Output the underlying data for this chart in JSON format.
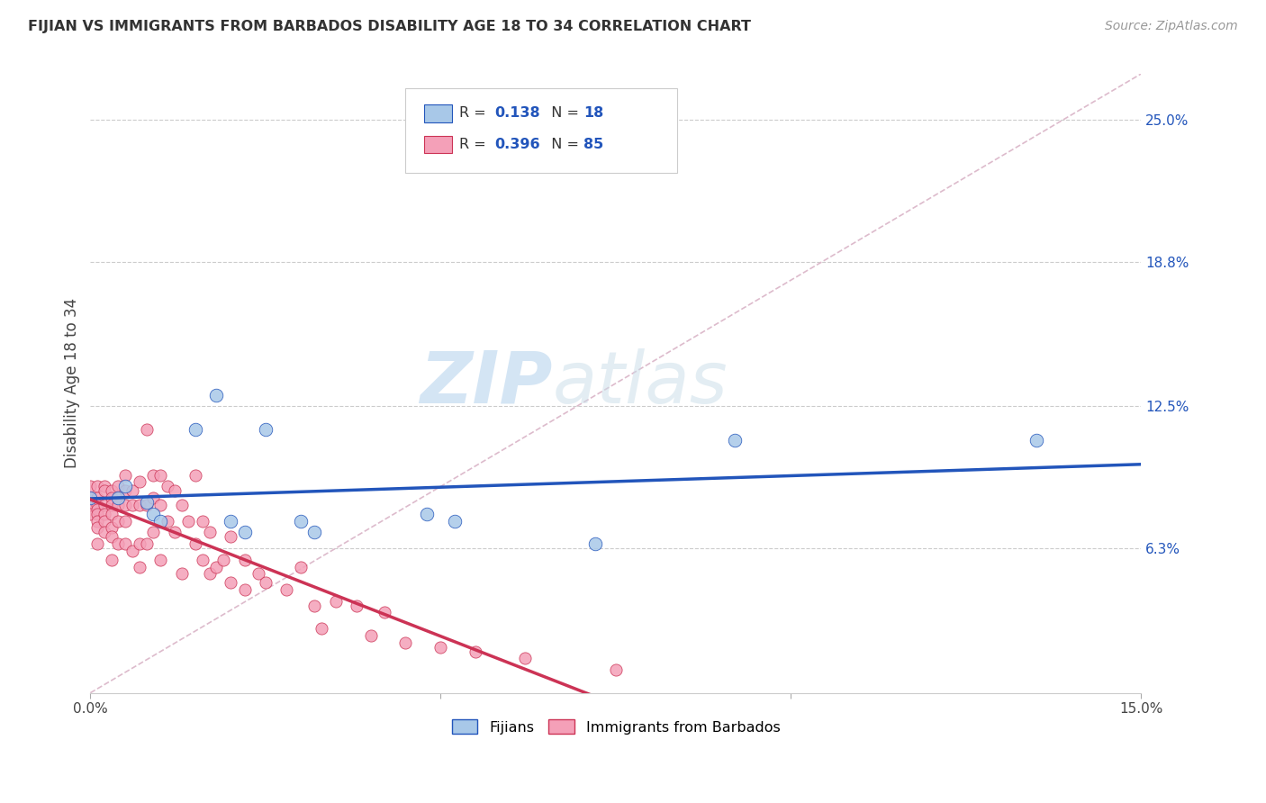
{
  "title": "FIJIAN VS IMMIGRANTS FROM BARBADOS DISABILITY AGE 18 TO 34 CORRELATION CHART",
  "source": "Source: ZipAtlas.com",
  "ylabel": "Disability Age 18 to 34",
  "xlim": [
    0.0,
    0.15
  ],
  "ylim": [
    0.0,
    0.27
  ],
  "ytick_right_labels": [
    "25.0%",
    "18.8%",
    "12.5%",
    "6.3%"
  ],
  "ytick_right_values": [
    0.25,
    0.188,
    0.125,
    0.063
  ],
  "grid_color": "#cccccc",
  "background_color": "#ffffff",
  "fijian_color": "#a8c8e8",
  "barbados_color": "#f4a0b8",
  "fijian_line_color": "#2255bb",
  "barbados_line_color": "#cc3355",
  "diagonal_color": "#ddbbcc",
  "legend_fijian_r": "0.138",
  "legend_fijian_n": "18",
  "legend_barbados_r": "0.396",
  "legend_barbados_n": "85",
  "watermark_zip": "ZIP",
  "watermark_atlas": "atlas",
  "fijian_x": [
    0.0,
    0.004,
    0.005,
    0.008,
    0.009,
    0.01,
    0.015,
    0.018,
    0.02,
    0.022,
    0.025,
    0.03,
    0.032,
    0.048,
    0.052,
    0.072,
    0.092,
    0.135
  ],
  "fijian_y": [
    0.085,
    0.085,
    0.09,
    0.083,
    0.078,
    0.075,
    0.115,
    0.13,
    0.075,
    0.07,
    0.115,
    0.075,
    0.07,
    0.078,
    0.075,
    0.065,
    0.11,
    0.11
  ],
  "barbados_x": [
    0.0,
    0.0,
    0.0,
    0.0,
    0.001,
    0.001,
    0.001,
    0.001,
    0.001,
    0.001,
    0.001,
    0.001,
    0.002,
    0.002,
    0.002,
    0.002,
    0.002,
    0.002,
    0.003,
    0.003,
    0.003,
    0.003,
    0.003,
    0.003,
    0.003,
    0.004,
    0.004,
    0.004,
    0.004,
    0.004,
    0.005,
    0.005,
    0.005,
    0.005,
    0.005,
    0.006,
    0.006,
    0.006,
    0.007,
    0.007,
    0.007,
    0.007,
    0.008,
    0.008,
    0.008,
    0.009,
    0.009,
    0.009,
    0.01,
    0.01,
    0.01,
    0.011,
    0.011,
    0.012,
    0.012,
    0.013,
    0.013,
    0.014,
    0.015,
    0.015,
    0.016,
    0.016,
    0.017,
    0.017,
    0.018,
    0.019,
    0.02,
    0.02,
    0.022,
    0.022,
    0.024,
    0.025,
    0.028,
    0.03,
    0.032,
    0.033,
    0.035,
    0.038,
    0.04,
    0.042,
    0.045,
    0.05,
    0.055,
    0.062,
    0.075
  ],
  "barbados_y": [
    0.09,
    0.085,
    0.082,
    0.078,
    0.09,
    0.085,
    0.082,
    0.08,
    0.078,
    0.075,
    0.072,
    0.065,
    0.09,
    0.088,
    0.082,
    0.078,
    0.075,
    0.07,
    0.088,
    0.085,
    0.082,
    0.078,
    0.072,
    0.068,
    0.058,
    0.09,
    0.085,
    0.082,
    0.075,
    0.065,
    0.095,
    0.088,
    0.082,
    0.075,
    0.065,
    0.088,
    0.082,
    0.062,
    0.092,
    0.082,
    0.065,
    0.055,
    0.115,
    0.082,
    0.065,
    0.095,
    0.085,
    0.07,
    0.095,
    0.082,
    0.058,
    0.09,
    0.075,
    0.088,
    0.07,
    0.082,
    0.052,
    0.075,
    0.095,
    0.065,
    0.075,
    0.058,
    0.07,
    0.052,
    0.055,
    0.058,
    0.068,
    0.048,
    0.058,
    0.045,
    0.052,
    0.048,
    0.045,
    0.055,
    0.038,
    0.028,
    0.04,
    0.038,
    0.025,
    0.035,
    0.022,
    0.02,
    0.018,
    0.015,
    0.01
  ]
}
